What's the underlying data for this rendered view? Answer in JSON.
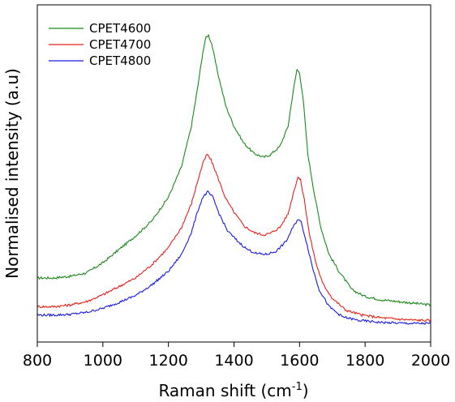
{
  "chart_data": {
    "type": "line",
    "title": "",
    "xlabel": "Raman shift (cm",
    "xlabel_sup": "-1",
    "xlabel_suffix": ")",
    "ylabel": "Normalised intensity (a.u)",
    "xlim": [
      800,
      2000
    ],
    "ylim": [
      0,
      1
    ],
    "x_ticks": [
      800,
      1000,
      1200,
      1400,
      1600,
      1800,
      2000
    ],
    "y_ticks_labeled": false,
    "grid": false,
    "legend_position": "top-left",
    "series": [
      {
        "name": "CPET4600",
        "color": "#1a8a1a",
        "points": [
          [
            800,
            0.19
          ],
          [
            850,
            0.19
          ],
          [
            900,
            0.195
          ],
          [
            950,
            0.205
          ],
          [
            1000,
            0.235
          ],
          [
            1050,
            0.275
          ],
          [
            1100,
            0.315
          ],
          [
            1150,
            0.36
          ],
          [
            1200,
            0.43
          ],
          [
            1240,
            0.52
          ],
          [
            1270,
            0.64
          ],
          [
            1290,
            0.76
          ],
          [
            1305,
            0.86
          ],
          [
            1315,
            0.905
          ],
          [
            1322,
            0.91
          ],
          [
            1332,
            0.885
          ],
          [
            1350,
            0.8
          ],
          [
            1375,
            0.7
          ],
          [
            1400,
            0.64
          ],
          [
            1430,
            0.59
          ],
          [
            1460,
            0.56
          ],
          [
            1490,
            0.548
          ],
          [
            1510,
            0.555
          ],
          [
            1540,
            0.58
          ],
          [
            1565,
            0.64
          ],
          [
            1580,
            0.74
          ],
          [
            1592,
            0.808
          ],
          [
            1600,
            0.8
          ],
          [
            1612,
            0.71
          ],
          [
            1625,
            0.56
          ],
          [
            1645,
            0.44
          ],
          [
            1665,
            0.34
          ],
          [
            1690,
            0.26
          ],
          [
            1720,
            0.21
          ],
          [
            1760,
            0.155
          ],
          [
            1800,
            0.135
          ],
          [
            1850,
            0.125
          ],
          [
            1900,
            0.12
          ],
          [
            1950,
            0.115
          ],
          [
            2000,
            0.11
          ]
        ]
      },
      {
        "name": "CPET4700",
        "color": "#e8201a",
        "points": [
          [
            800,
            0.105
          ],
          [
            850,
            0.105
          ],
          [
            900,
            0.11
          ],
          [
            950,
            0.12
          ],
          [
            1000,
            0.14
          ],
          [
            1050,
            0.165
          ],
          [
            1100,
            0.19
          ],
          [
            1150,
            0.23
          ],
          [
            1200,
            0.28
          ],
          [
            1240,
            0.34
          ],
          [
            1270,
            0.41
          ],
          [
            1290,
            0.48
          ],
          [
            1305,
            0.53
          ],
          [
            1318,
            0.557
          ],
          [
            1330,
            0.54
          ],
          [
            1350,
            0.49
          ],
          [
            1375,
            0.425
          ],
          [
            1400,
            0.385
          ],
          [
            1430,
            0.345
          ],
          [
            1460,
            0.325
          ],
          [
            1490,
            0.318
          ],
          [
            1510,
            0.322
          ],
          [
            1540,
            0.34
          ],
          [
            1565,
            0.38
          ],
          [
            1582,
            0.445
          ],
          [
            1595,
            0.49
          ],
          [
            1603,
            0.48
          ],
          [
            1615,
            0.42
          ],
          [
            1630,
            0.32
          ],
          [
            1650,
            0.235
          ],
          [
            1670,
            0.175
          ],
          [
            1700,
            0.13
          ],
          [
            1740,
            0.095
          ],
          [
            1790,
            0.08
          ],
          [
            1850,
            0.072
          ],
          [
            1900,
            0.068
          ],
          [
            1950,
            0.065
          ],
          [
            2000,
            0.064
          ]
        ]
      },
      {
        "name": "CPET4800",
        "color": "#1a1ae8",
        "points": [
          [
            800,
            0.08
          ],
          [
            850,
            0.08
          ],
          [
            900,
            0.082
          ],
          [
            950,
            0.088
          ],
          [
            1000,
            0.1
          ],
          [
            1050,
            0.118
          ],
          [
            1100,
            0.138
          ],
          [
            1150,
            0.17
          ],
          [
            1200,
            0.21
          ],
          [
            1240,
            0.26
          ],
          [
            1270,
            0.325
          ],
          [
            1290,
            0.39
          ],
          [
            1305,
            0.43
          ],
          [
            1320,
            0.445
          ],
          [
            1335,
            0.43
          ],
          [
            1355,
            0.38
          ],
          [
            1380,
            0.33
          ],
          [
            1410,
            0.3
          ],
          [
            1440,
            0.275
          ],
          [
            1470,
            0.262
          ],
          [
            1500,
            0.26
          ],
          [
            1530,
            0.27
          ],
          [
            1560,
            0.3
          ],
          [
            1580,
            0.34
          ],
          [
            1595,
            0.365
          ],
          [
            1605,
            0.355
          ],
          [
            1620,
            0.3
          ],
          [
            1640,
            0.22
          ],
          [
            1660,
            0.155
          ],
          [
            1690,
            0.105
          ],
          [
            1730,
            0.075
          ],
          [
            1780,
            0.064
          ],
          [
            1850,
            0.058
          ],
          [
            1900,
            0.056
          ],
          [
            1950,
            0.055
          ],
          [
            2000,
            0.055
          ]
        ]
      }
    ]
  }
}
